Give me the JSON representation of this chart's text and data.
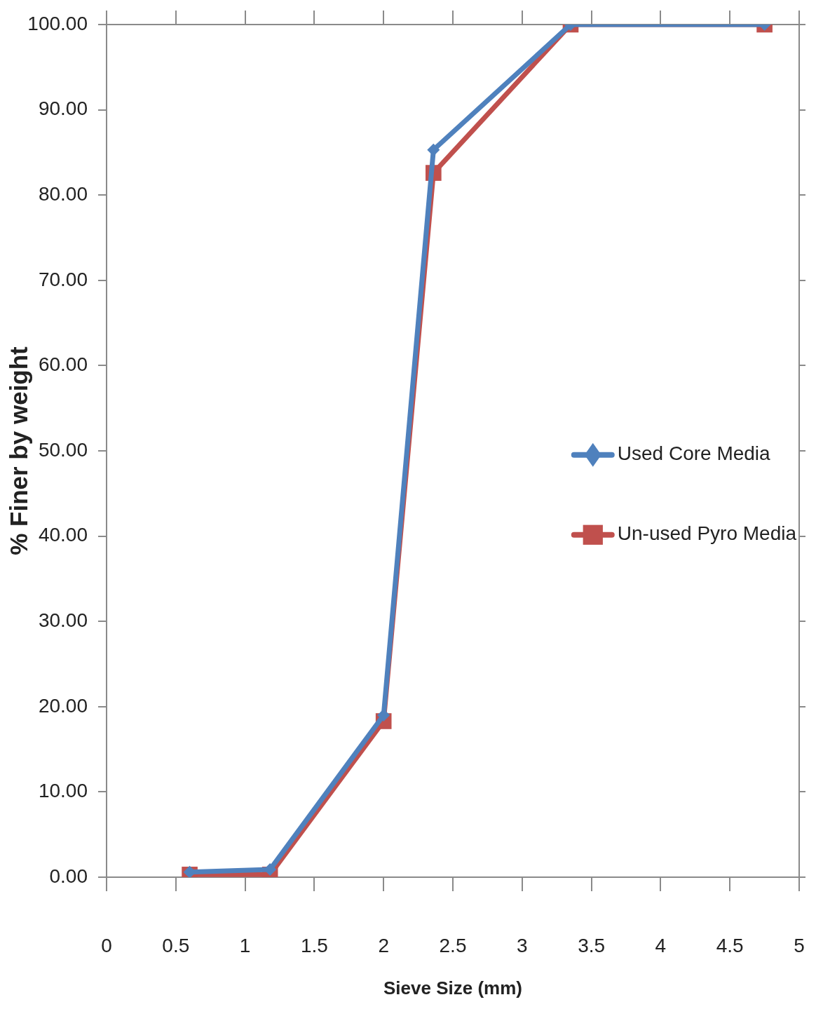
{
  "chart_data": {
    "type": "line",
    "xlabel": "Sieve Size (mm)",
    "ylabel": "% Finer by weight",
    "x": [
      0.6,
      1.18,
      2,
      2.36,
      3.35,
      4.75
    ],
    "series": [
      {
        "name": "Used Core Media",
        "color": "#4f81bd",
        "marker": "diamond",
        "values": [
          0.6,
          0.9,
          19.0,
          85.3,
          100,
          100
        ]
      },
      {
        "name": "Un-used Pyro Media",
        "color": "#c0504d",
        "marker": "square",
        "values": [
          0.3,
          0.3,
          18.3,
          82.6,
          100,
          100
        ]
      }
    ],
    "xlim": [
      0,
      5
    ],
    "xticks": [
      0,
      0.5,
      1,
      1.5,
      2,
      2.5,
      3,
      3.5,
      4,
      4.5,
      5
    ],
    "ylim": [
      0,
      100
    ],
    "yticks": [
      {
        "value": 0,
        "label": "0.00"
      },
      {
        "value": 10,
        "label": "10.00"
      },
      {
        "value": 20,
        "label": "20.00"
      },
      {
        "value": 30,
        "label": "30.00"
      },
      {
        "value": 40,
        "label": "40.00"
      },
      {
        "value": 50,
        "label": "50.00"
      },
      {
        "value": 60,
        "label": "60.00"
      },
      {
        "value": 70,
        "label": "70.00"
      },
      {
        "value": 80,
        "label": "80.00"
      },
      {
        "value": 90,
        "label": "90.00"
      },
      {
        "value": 100,
        "label": "100.00"
      }
    ],
    "grid": false,
    "legend": "right"
  }
}
